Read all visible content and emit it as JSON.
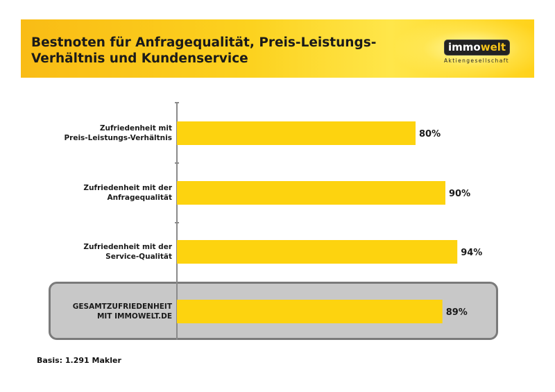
{
  "header": {
    "title_line1": "Bestnoten für Anfragequalität, Preis-Leistungs-",
    "title_line2": "Verhältnis und Kundenservice"
  },
  "logo": {
    "immo": "immo",
    "welt": "welt",
    "subtitle": "Aktiengesellschaft"
  },
  "footer": {
    "basis": "Basis: 1.291 Makler"
  },
  "colors": {
    "bar": "#fdd30f",
    "highlight_box": "#c8c8c8"
  },
  "chart_data": {
    "type": "bar",
    "orientation": "horizontal",
    "title": "Bestnoten für Anfragequalität, Preis-Leistungs-Verhältnis und Kundenservice",
    "xlim": [
      0,
      100
    ],
    "grid": false,
    "categories": [
      [
        "Zufriedenheit mit",
        "Preis-Leistungs-Verhältnis"
      ],
      [
        "Zufriedenheit mit der",
        "Anfragequalität"
      ],
      [
        "Zufriedenheit mit der",
        "Service-Qualität"
      ],
      [
        "GESAMTZUFRIEDENHEIT",
        "MIT IMMOWELT.DE"
      ]
    ],
    "values": [
      80,
      90,
      94,
      89
    ],
    "value_labels": [
      "80%",
      "90%",
      "94%",
      "89%"
    ],
    "highlighted_index": 3
  }
}
